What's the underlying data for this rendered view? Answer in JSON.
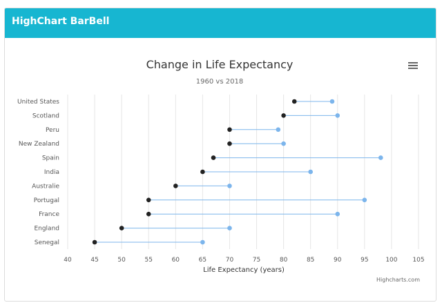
{
  "header": {
    "title": "HighChart BarBell"
  },
  "chart_data": {
    "type": "dumbbell",
    "title": "Change in Life Expectancy",
    "subtitle": "1960 vs 2018",
    "xlabel": "Life Expectancy (years)",
    "xlim": [
      40,
      105
    ],
    "xticks": [
      40,
      45,
      50,
      55,
      60,
      65,
      70,
      75,
      80,
      85,
      90,
      95,
      100,
      105
    ],
    "categories": [
      "United States",
      "Scotland",
      "Peru",
      "New Zealand",
      "Spain",
      "India",
      "Australie",
      "Portugal",
      "France",
      "England",
      "Senegal"
    ],
    "low": [
      82,
      80,
      70,
      70,
      67,
      65,
      60,
      55,
      55,
      50,
      45
    ],
    "high": [
      89,
      90,
      79,
      80,
      98,
      85,
      70,
      95,
      90,
      70,
      65
    ],
    "credit": "Highcharts.com",
    "grid": true,
    "colors": {
      "low": "#222222",
      "high": "#7cb5ec",
      "connector": "#7cb5ec",
      "grid": "#e6e6e6",
      "axis_text": "#555555"
    },
    "menu_icon": "hamburger-menu-icon"
  }
}
